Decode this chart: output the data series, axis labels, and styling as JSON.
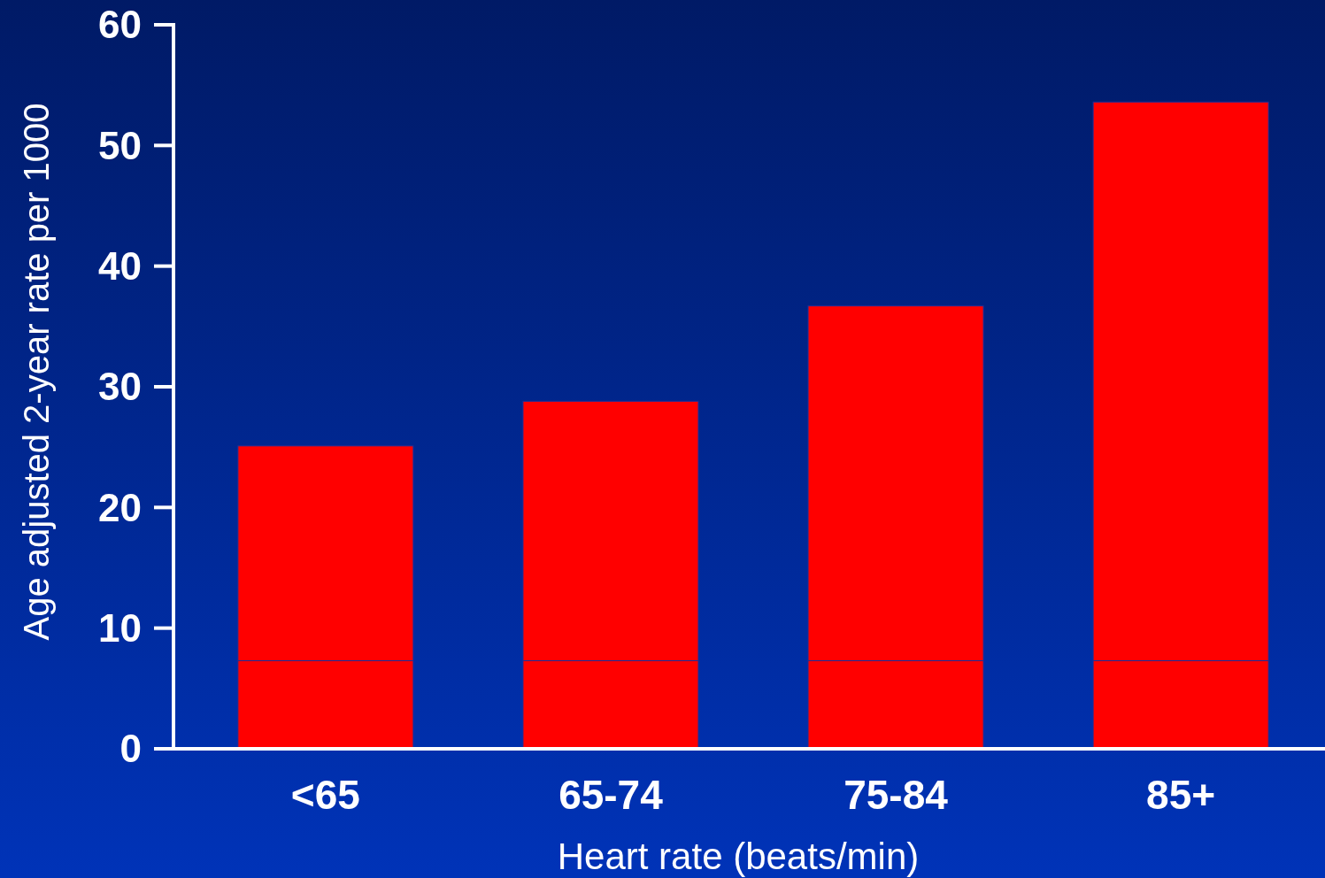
{
  "chart_data": {
    "type": "bar",
    "stacked": true,
    "xlabel": "Heart rate (beats/min)",
    "ylabel": "Age adjusted 2-year rate per 1000",
    "categories": [
      "<65",
      "65-74",
      "75-84",
      "85+"
    ],
    "series": [
      {
        "color": "#ff0000",
        "values": [
          7.3,
          7.3,
          7.3,
          7.3
        ]
      },
      {
        "color": "#ff0000",
        "values": [
          17.8,
          21.5,
          29.4,
          46.3
        ]
      }
    ],
    "ylim": [
      0,
      60
    ],
    "yticks": [
      0,
      10,
      20,
      30,
      40,
      50,
      60
    ]
  }
}
